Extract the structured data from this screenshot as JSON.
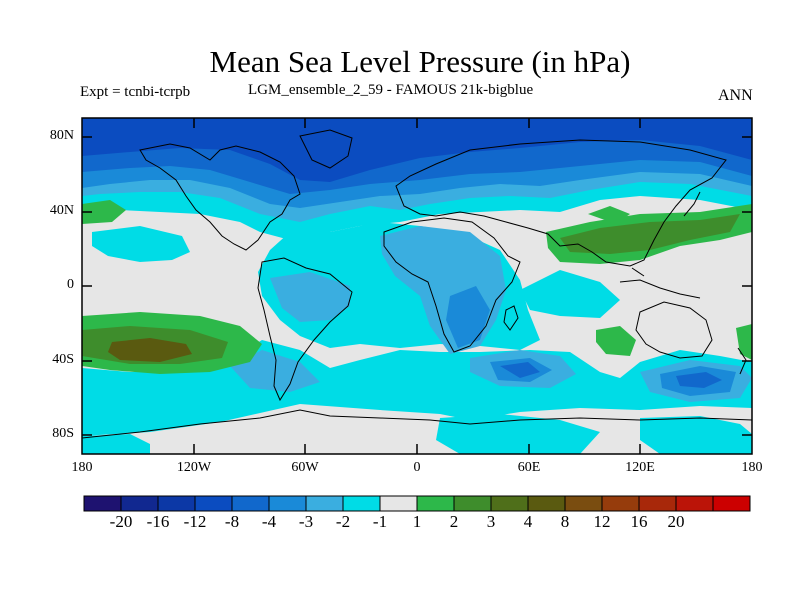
{
  "title": "Mean Sea Level Pressure (in hPa)",
  "expt": "Expt = tcnbi-tcrpb",
  "run": "LGM_ensemble_2_59 - FAMOUS 21k-bigblue",
  "season": "ANN",
  "y_ticks": [
    "80N",
    "40N",
    "0",
    "40S",
    "80S"
  ],
  "x_ticks": [
    "180",
    "120W",
    "60W",
    "0",
    "60E",
    "120E",
    "180"
  ],
  "colorbar": {
    "colors": [
      "#1e1270",
      "#112890",
      "#0c38a6",
      "#0b4cc0",
      "#1168cc",
      "#1a8ad8",
      "#3aaee0",
      "#00dce6",
      "#e6e6e6",
      "#2db84a",
      "#3e8d2c",
      "#4f6f1a",
      "#5a5a10",
      "#7a4d10",
      "#963c0c",
      "#a8280a",
      "#bb1408",
      "#cc0000"
    ],
    "labels": [
      "-20",
      "-16",
      "-12",
      "-8",
      "-4",
      "-3",
      "-2",
      "-1",
      "1",
      "2",
      "3",
      "4",
      "8",
      "12",
      "16",
      "20"
    ]
  },
  "field_colors": {
    "background": "#e6e6e6",
    "minus1": "#00dce6",
    "minus2": "#3aaee0",
    "minus3": "#1a8ad8",
    "minus4": "#1168cc",
    "minus8": "#0b4cc0",
    "plus1": "#2db84a",
    "plus3": "#3e8d2c",
    "plus4": "#5a5a10"
  }
}
